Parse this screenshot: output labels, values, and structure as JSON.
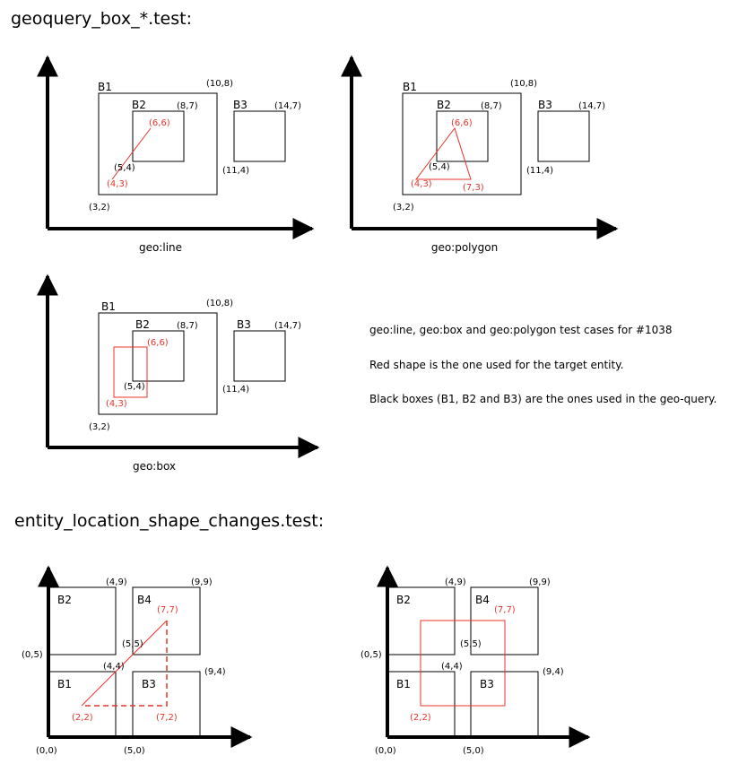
{
  "section1": {
    "title": "geoquery_box_*.test:",
    "diagrams": [
      {
        "caption": "geo:line",
        "labels": {
          "B1": "B1",
          "B2": "B2",
          "B3": "B3"
        },
        "coords": {
          "c10_8": "(10,8)",
          "c8_7": "(8,7)",
          "c14_7": "(14,7)",
          "c5_4": "(5,4)",
          "c11_4": "(11,4)",
          "c3_2": "(3,2)"
        },
        "red_coords": {
          "c6_6": "(6,6)",
          "c4_3": "(4,3)"
        }
      },
      {
        "caption": "geo:polygon",
        "labels": {
          "B1": "B1",
          "B2": "B2",
          "B3": "B3"
        },
        "coords": {
          "c10_8": "(10,8)",
          "c8_7": "(8,7)",
          "c14_7": "(14,7)",
          "c5_4": "(5,4)",
          "c11_4": "(11,4)",
          "c3_2": "(3,2)"
        },
        "red_coords": {
          "c6_6": "(6,6)",
          "c4_3": "(4,3)",
          "c7_3": "(7,3)"
        }
      },
      {
        "caption": "geo:box",
        "labels": {
          "B1": "B1",
          "B2": "B2",
          "B3": "B3"
        },
        "coords": {
          "c10_8": "(10,8)",
          "c8_7": "(8,7)",
          "c14_7": "(14,7)",
          "c5_4": "(5,4)",
          "c11_4": "(11,4)",
          "c3_2": "(3,2)"
        },
        "red_coords": {
          "c6_6": "(6,6)",
          "c4_3": "(4,3)"
        }
      }
    ],
    "notes": [
      "geo:line, geo:box and geo:polygon test cases for #1038",
      "Red shape is the one used for the target entity.",
      "Black boxes (B1, B2 and B3) are the ones used in the geo-query."
    ]
  },
  "section2": {
    "title": "entity_location_shape_changes.test:",
    "diagrams": [
      {
        "labels": {
          "B1": "B1",
          "B2": "B2",
          "B3": "B3",
          "B4": "B4"
        },
        "coords": {
          "c4_9": "(4,9)",
          "c9_9": "(9,9)",
          "c5_5": "(5,5)",
          "c0_5": "(0,5)",
          "c4_4": "(4,4)",
          "c9_4": "(9,4)",
          "c0_0": "(0,0)",
          "c5_0": "(5,0)"
        },
        "red_coords": {
          "c7_7": "(7,7)",
          "c2_2": "(2,2)",
          "c7_2": "(7,2)"
        }
      },
      {
        "labels": {
          "B1": "B1",
          "B2": "B2",
          "B3": "B3",
          "B4": "B4"
        },
        "coords": {
          "c4_9": "(4,9)",
          "c9_9": "(9,9)",
          "c5_5": "(5,5)",
          "c0_5": "(0,5)",
          "c4_4": "(4,4)",
          "c9_4": "(9,4)",
          "c0_0": "(0,0)",
          "c5_0": "(5,0)"
        },
        "red_coords": {
          "c7_7": "(7,7)",
          "c2_2": "(2,2)"
        }
      }
    ]
  },
  "colors": {
    "black": "#000000",
    "red": "#e8332a"
  }
}
